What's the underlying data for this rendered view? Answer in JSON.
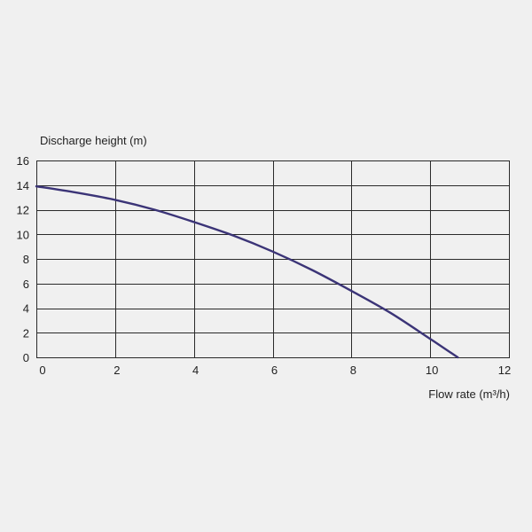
{
  "chart_data": {
    "type": "line",
    "title": "",
    "ylabel": "Discharge height (m)",
    "xlabel": "Flow rate (m³/h)",
    "xlim": [
      0,
      12
    ],
    "ylim": [
      0,
      16
    ],
    "x_ticks": [
      "0",
      "2",
      "4",
      "6",
      "8",
      "10",
      "12"
    ],
    "y_ticks": [
      "0",
      "2",
      "4",
      "6",
      "8",
      "10",
      "12",
      "14",
      "16"
    ],
    "grid": true,
    "legend": "none",
    "colors": {
      "line": "#3b3477",
      "grid": "#2a2a2a",
      "background": "#f0f0f0"
    },
    "series": [
      {
        "x": [
          0,
          1,
          2,
          3,
          4,
          5,
          6,
          7,
          8,
          9,
          10,
          10.7
        ],
        "y": [
          13.9,
          13.4,
          12.8,
          12.0,
          11.0,
          9.9,
          8.6,
          7.1,
          5.4,
          3.6,
          1.5,
          0
        ]
      }
    ]
  }
}
